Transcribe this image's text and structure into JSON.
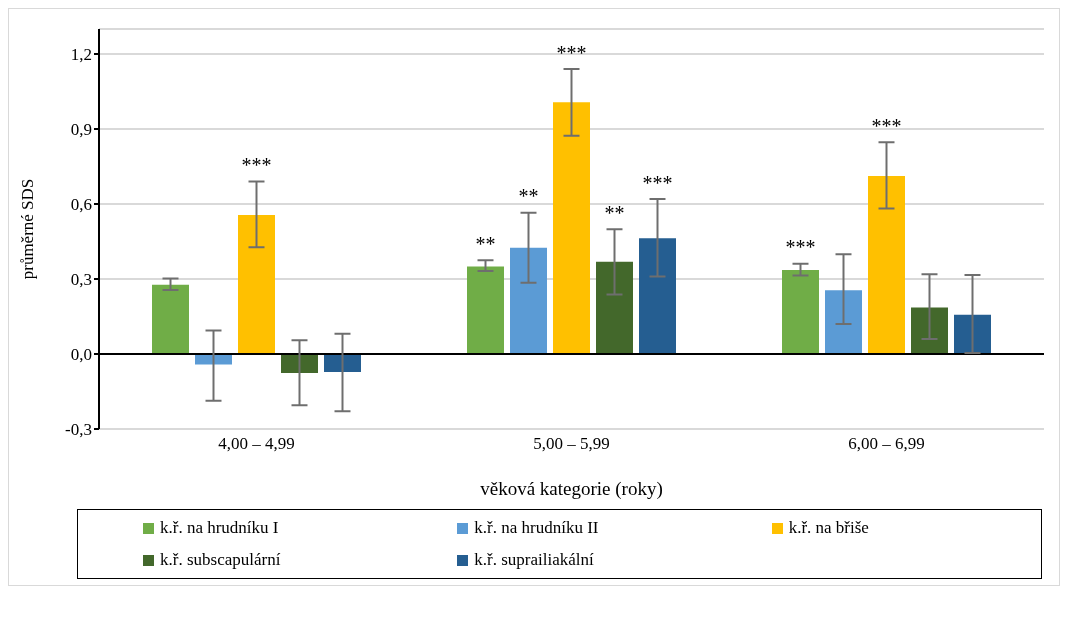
{
  "chart_data": {
    "type": "bar",
    "xlabel": "věková kategorie (roky)",
    "ylabel": "průměrné SDS",
    "categories": [
      "4,00 – 4,99",
      "5,00 – 5,99",
      "6,00 – 6,99"
    ],
    "series": [
      {
        "name": "k.ř. na hrudníku I",
        "color": "#70ad47",
        "values": [
          0.277,
          0.35,
          0.336
        ],
        "errors": [
          [
            0.256,
            0.302
          ],
          [
            0.332,
            0.375
          ],
          [
            0.314,
            0.361
          ]
        ],
        "value_labels": [
          null,
          "**",
          "***"
        ]
      },
      {
        "name": "k.ř. na hrudníku II",
        "color": "#5b9bd5",
        "values": [
          -0.042,
          0.425,
          0.255
        ],
        "errors": [
          [
            -0.187,
            0.094
          ],
          [
            0.285,
            0.565
          ],
          [
            0.12,
            0.399
          ]
        ],
        "value_labels": [
          null,
          "**",
          null
        ]
      },
      {
        "name": "k.ř. na břiše",
        "color": "#ffc000",
        "values": [
          0.556,
          1.007,
          0.712
        ],
        "errors": [
          [
            0.427,
            0.69
          ],
          [
            0.873,
            1.14
          ],
          [
            0.582,
            0.847
          ]
        ],
        "value_labels": [
          "***",
          "***",
          "***"
        ]
      },
      {
        "name": "k.ř. subscapulární",
        "color": "#43682b",
        "values": [
          -0.076,
          0.369,
          0.186
        ],
        "errors": [
          [
            -0.205,
            0.055
          ],
          [
            0.238,
            0.499
          ],
          [
            0.06,
            0.319
          ]
        ],
        "value_labels": [
          null,
          "**",
          null
        ]
      },
      {
        "name": "k.ř. suprailiakální",
        "color": "#255e91",
        "values": [
          -0.072,
          0.463,
          0.157
        ],
        "errors": [
          [
            -0.229,
            0.081
          ],
          [
            0.31,
            0.62
          ],
          [
            0.004,
            0.316
          ]
        ],
        "value_labels": [
          null,
          "***",
          null
        ]
      }
    ],
    "ylim": [
      -0.3,
      1.3
    ],
    "yticks": [
      {
        "value": -0.3,
        "label": "-0,3"
      },
      {
        "value": 0,
        "label": "0,0"
      },
      {
        "value": 0.3,
        "label": "0,3"
      },
      {
        "value": 0.6,
        "label": "0,6"
      },
      {
        "value": 0.9,
        "label": "0,9"
      },
      {
        "value": 1.2,
        "label": "1,2"
      }
    ],
    "grid": "y",
    "legend": "bottom"
  }
}
